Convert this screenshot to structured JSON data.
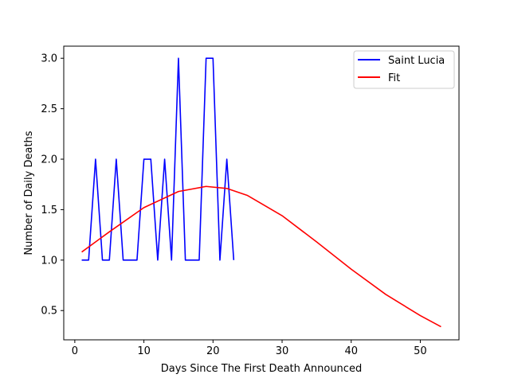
{
  "chart_data": {
    "type": "line",
    "xlabel": "Days Since The First Death Announced",
    "ylabel": "Number of Daily Deaths",
    "xlim": [
      -1.6,
      55.6
    ],
    "ylim": [
      0.21,
      3.12
    ],
    "xticks": [
      0,
      10,
      20,
      30,
      40,
      50
    ],
    "yticks": [
      0.5,
      1.0,
      1.5,
      2.0,
      2.5,
      3.0
    ],
    "xtick_labels": [
      "0",
      "10",
      "20",
      "30",
      "40",
      "50"
    ],
    "ytick_labels": [
      "0.5",
      "1.0",
      "1.5",
      "2.0",
      "2.5",
      "3.0"
    ],
    "grid": false,
    "legend_position": "top-right",
    "series": [
      {
        "name": "Saint Lucia",
        "color": "#0000ff",
        "x": [
          1,
          2,
          3,
          4,
          5,
          6,
          7,
          8,
          9,
          10,
          11,
          12,
          13,
          14,
          15,
          16,
          17,
          18,
          19,
          20,
          21,
          22,
          23
        ],
        "y": [
          1,
          1,
          2,
          1,
          1,
          2,
          1,
          1,
          1,
          2,
          2,
          1,
          2,
          1,
          3,
          1,
          1,
          1,
          3,
          3,
          1,
          2,
          1
        ]
      },
      {
        "name": "Fit",
        "color": "#ff0000",
        "x": [
          1,
          5,
          10,
          15,
          19,
          22,
          25,
          30,
          35,
          40,
          45,
          50,
          53
        ],
        "y": [
          1.08,
          1.28,
          1.52,
          1.68,
          1.73,
          1.71,
          1.64,
          1.44,
          1.18,
          0.91,
          0.66,
          0.45,
          0.34
        ]
      }
    ]
  }
}
